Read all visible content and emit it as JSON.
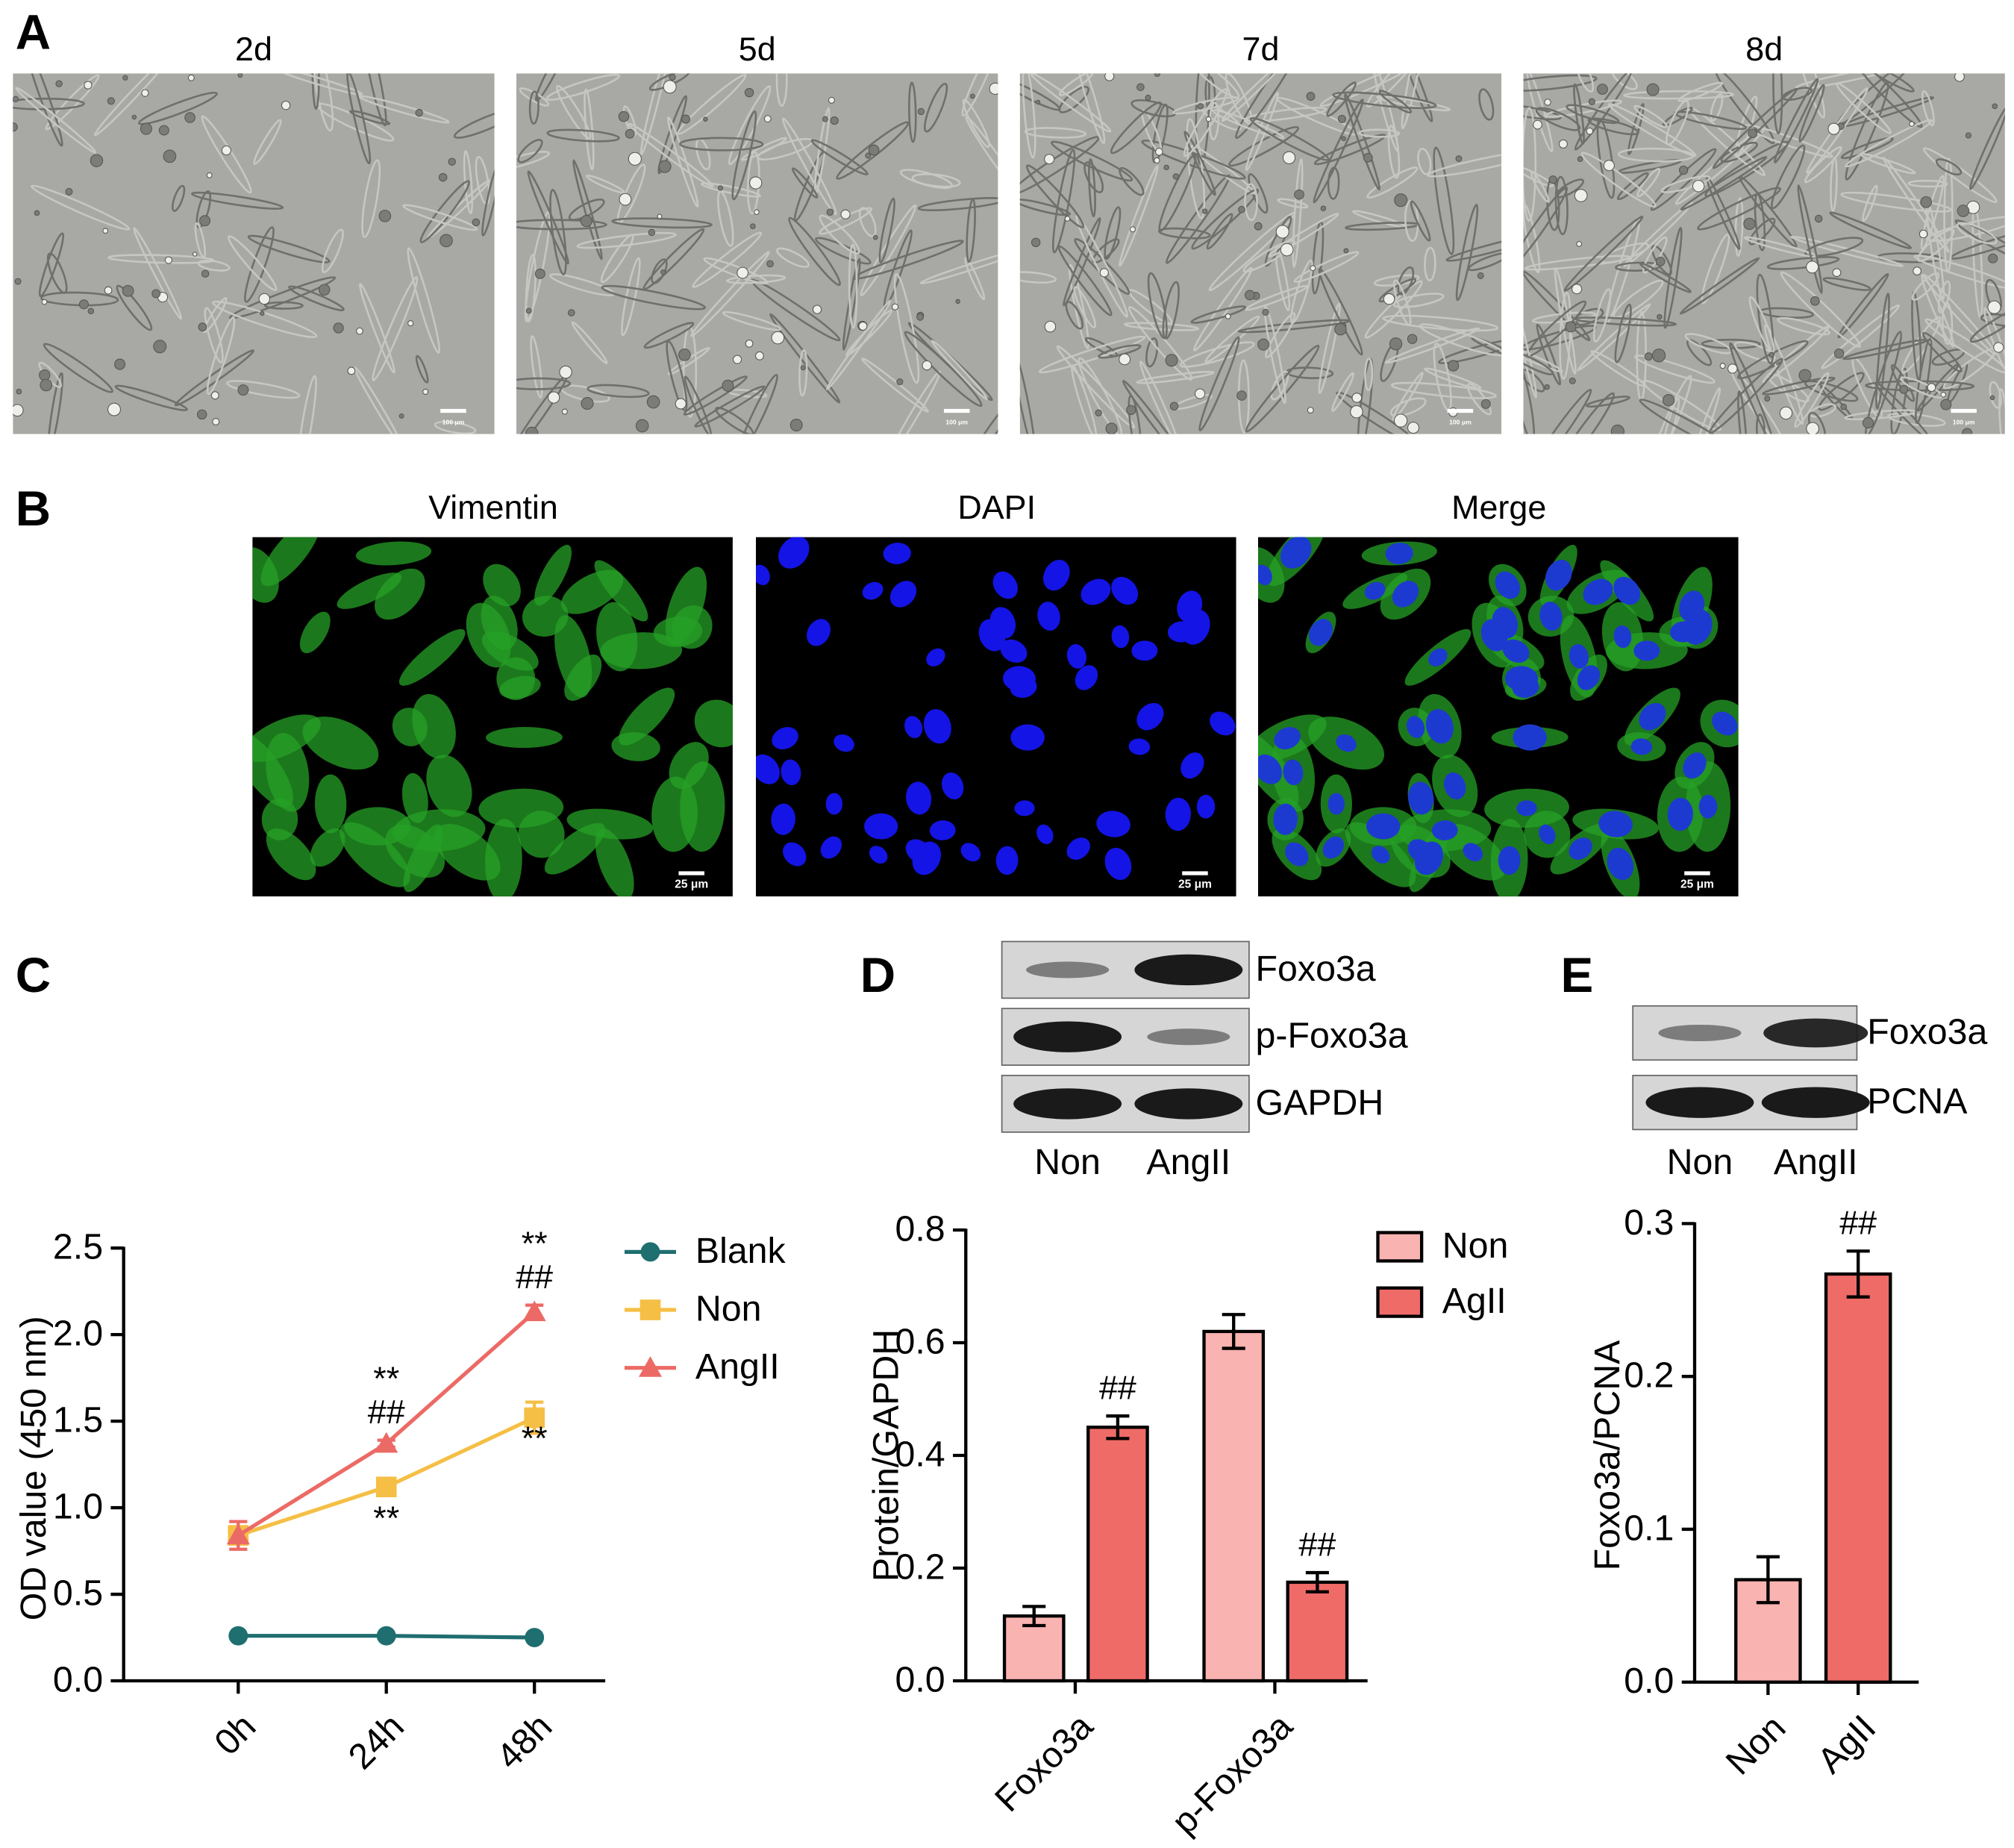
{
  "panels": [
    {
      "label": "A",
      "images": [
        {
          "title": "2d",
          "scale_bar": "100 μm"
        },
        {
          "title": "5d",
          "scale_bar": "100 μm"
        },
        {
          "title": "7d",
          "scale_bar": "100 μm"
        },
        {
          "title": "8d",
          "scale_bar": "100 μm"
        }
      ]
    },
    {
      "label": "B",
      "images": [
        {
          "title": "Vimentin",
          "scale_bar": "25 μm"
        },
        {
          "title": "DAPI",
          "scale_bar": "25 μm"
        },
        {
          "title": "Merge",
          "scale_bar": "25 μm"
        }
      ]
    },
    {
      "label": "C"
    },
    {
      "label": "D",
      "blot": {
        "rows": [
          "Foxo3a",
          "p-Foxo3a",
          "GAPDH"
        ],
        "lanes": [
          "Non",
          "AngII"
        ]
      }
    },
    {
      "label": "E",
      "blot": {
        "rows": [
          "Foxo3a",
          "PCNA"
        ],
        "lanes": [
          "Non",
          "AngII"
        ]
      }
    }
  ],
  "chart_data": [
    {
      "type": "line",
      "categories": [
        "0h",
        "24h",
        "48h"
      ],
      "ylabel": "OD value (450 nm)",
      "ylim": [
        0,
        2.5
      ],
      "yticks": [
        {
          "value": 0,
          "label": "0.0"
        },
        {
          "value": 0.5,
          "label": "0.5"
        },
        {
          "value": 1,
          "label": "1.0"
        },
        {
          "value": 1.5,
          "label": "1.5"
        },
        {
          "value": 2,
          "label": "2.0"
        },
        2.5
      ],
      "legend": "right",
      "series": [
        {
          "name": "Blank",
          "color": "#1f6e70",
          "marker": "circle",
          "values": [
            0.26,
            0.26,
            0.25
          ]
        },
        {
          "name": "Non",
          "color": "#f5bf45",
          "marker": "square",
          "values": [
            0.84,
            1.12,
            1.52
          ],
          "errors": [
            0.05,
            0.03,
            0.09
          ],
          "annotations": [
            [],
            [
              "**"
            ],
            [
              "**"
            ]
          ]
        },
        {
          "name": "AngII",
          "color": "#ec6a66",
          "marker": "triangle",
          "values": [
            0.84,
            1.37,
            2.13
          ],
          "errors": [
            0.08,
            0.02,
            0.04
          ],
          "annotations": [
            [],
            [
              "**",
              "##"
            ],
            [
              "**",
              "##"
            ]
          ]
        }
      ]
    },
    {
      "type": "bar",
      "categories": [
        "Foxo3a",
        "p-Foxo3a"
      ],
      "ylabel": "Protein/GAPDH",
      "ylim": [
        0,
        0.8
      ],
      "yticks": [
        {
          "value": 0,
          "label": "0.0"
        },
        0.2,
        0.4,
        0.6,
        0.8
      ],
      "legend": "upper right",
      "series": [
        {
          "name": "Non",
          "color": "#f9b3b0",
          "values": [
            0.115,
            0.62
          ],
          "errors": [
            0.017,
            0.03
          ]
        },
        {
          "name": "AgII",
          "color": "#ef6b67",
          "values": [
            0.45,
            0.175
          ],
          "errors": [
            0.02,
            0.017
          ],
          "annotations": [
            [
              "##"
            ],
            [
              "##"
            ]
          ]
        }
      ]
    },
    {
      "type": "bar",
      "categories": [
        "Non",
        "AgII"
      ],
      "ylabel": "Foxo3a/PCNA",
      "ylim": [
        0,
        0.3
      ],
      "yticks": [
        {
          "value": 0,
          "label": "0.0"
        },
        0.1,
        0.2,
        0.3
      ],
      "values": [
        0.067,
        0.267
      ],
      "errors": [
        0.015,
        0.015
      ],
      "colors": [
        "#f9b3b0",
        "#ef6b67"
      ],
      "annotations": [
        [],
        [
          "##"
        ]
      ]
    }
  ]
}
